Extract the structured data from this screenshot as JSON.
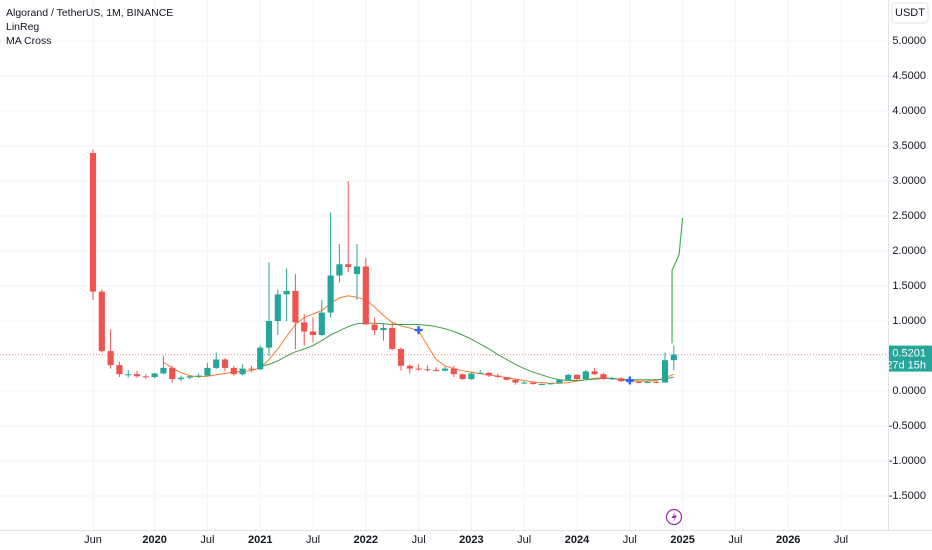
{
  "chart_data": {
    "type": "candlestick",
    "title": "Algorand / TetherUS, 1M, BINANCE",
    "indicators": [
      "LinReg",
      "MA Cross"
    ],
    "currency": "USDT",
    "x": [
      0,
      1,
      2,
      3,
      4,
      5,
      6,
      7,
      8,
      9,
      10,
      11,
      12,
      13,
      14,
      15,
      16,
      17,
      18,
      19,
      20,
      21,
      22,
      23,
      24,
      25,
      26,
      27,
      28,
      29,
      30,
      31,
      32,
      33,
      34,
      35,
      36,
      37,
      38,
      39,
      40,
      41,
      42,
      43,
      44,
      45,
      46,
      47,
      48,
      49,
      50,
      51,
      52,
      53,
      54,
      55,
      56,
      57,
      58,
      59,
      60,
      61,
      62,
      63,
      64,
      65,
      66
    ],
    "open": [
      3.4,
      1.42,
      0.57,
      0.37,
      0.24,
      0.24,
      0.21,
      0.2,
      0.25,
      0.33,
      0.17,
      0.19,
      0.21,
      0.22,
      0.33,
      0.45,
      0.33,
      0.24,
      0.32,
      0.31,
      0.62,
      1.0,
      1.38,
      1.43,
      0.98,
      0.85,
      0.8,
      1.12,
      1.65,
      1.81,
      1.67,
      1.78,
      0.95,
      0.87,
      0.9,
      0.6,
      0.36,
      0.32,
      0.31,
      0.3,
      0.29,
      0.32,
      0.24,
      0.17,
      0.25,
      0.26,
      0.22,
      0.2,
      0.16,
      0.12,
      0.12,
      0.1,
      0.1,
      0.11,
      0.16,
      0.23,
      0.17,
      0.28,
      0.24,
      0.17,
      0.18,
      0.14,
      0.13,
      0.12,
      0.13,
      0.12,
      0.44
    ],
    "high": [
      3.45,
      1.45,
      0.88,
      0.42,
      0.3,
      0.29,
      0.24,
      0.26,
      0.5,
      0.36,
      0.22,
      0.23,
      0.25,
      0.4,
      0.55,
      0.47,
      0.36,
      0.38,
      0.36,
      0.65,
      1.84,
      1.45,
      1.75,
      1.67,
      1.1,
      1.05,
      1.3,
      2.55,
      2.1,
      3.0,
      2.1,
      1.9,
      1.05,
      0.97,
      0.97,
      0.62,
      0.38,
      0.38,
      0.37,
      0.34,
      0.35,
      0.36,
      0.25,
      0.27,
      0.3,
      0.27,
      0.25,
      0.2,
      0.17,
      0.14,
      0.12,
      0.11,
      0.11,
      0.17,
      0.25,
      0.24,
      0.3,
      0.33,
      0.26,
      0.2,
      0.2,
      0.16,
      0.14,
      0.14,
      0.14,
      0.55,
      0.65
    ],
    "low": [
      1.3,
      0.55,
      0.32,
      0.2,
      0.19,
      0.19,
      0.17,
      0.18,
      0.24,
      0.12,
      0.14,
      0.17,
      0.19,
      0.21,
      0.31,
      0.28,
      0.22,
      0.22,
      0.27,
      0.3,
      0.5,
      0.8,
      1.0,
      0.6,
      0.65,
      0.7,
      0.78,
      1.05,
      1.55,
      1.7,
      1.3,
      0.95,
      0.8,
      0.72,
      0.58,
      0.29,
      0.25,
      0.29,
      0.28,
      0.28,
      0.28,
      0.2,
      0.16,
      0.16,
      0.24,
      0.2,
      0.19,
      0.15,
      0.09,
      0.1,
      0.09,
      0.09,
      0.09,
      0.11,
      0.15,
      0.16,
      0.16,
      0.23,
      0.16,
      0.16,
      0.13,
      0.12,
      0.11,
      0.11,
      0.11,
      0.12,
      0.3
    ],
    "close": [
      1.42,
      0.57,
      0.37,
      0.24,
      0.24,
      0.21,
      0.2,
      0.25,
      0.33,
      0.17,
      0.19,
      0.21,
      0.22,
      0.33,
      0.45,
      0.33,
      0.24,
      0.32,
      0.31,
      0.62,
      1.0,
      1.38,
      1.43,
      0.98,
      0.85,
      0.8,
      1.12,
      1.65,
      1.81,
      1.77,
      1.78,
      0.95,
      0.87,
      0.9,
      0.6,
      0.36,
      0.32,
      0.31,
      0.3,
      0.29,
      0.32,
      0.24,
      0.17,
      0.25,
      0.26,
      0.22,
      0.2,
      0.16,
      0.12,
      0.12,
      0.1,
      0.1,
      0.11,
      0.16,
      0.23,
      0.17,
      0.28,
      0.24,
      0.17,
      0.18,
      0.14,
      0.13,
      0.12,
      0.13,
      0.12,
      0.44,
      0.52
    ],
    "up_color": "#26a69a",
    "down_color": "#ef5350",
    "series": [
      {
        "color": "#f57c2c",
        "values": [
          null,
          null,
          null,
          null,
          null,
          null,
          null,
          null,
          0.41,
          0.33,
          0.26,
          0.22,
          0.2,
          0.21,
          0.23,
          0.25,
          0.27,
          0.28,
          0.29,
          0.33,
          0.45,
          0.6,
          0.78,
          0.95,
          1.05,
          1.1,
          1.15,
          1.25,
          1.33,
          1.36,
          1.34,
          1.3,
          1.2,
          1.08,
          0.98,
          0.93,
          0.9,
          0.86,
          0.65,
          0.45,
          0.36,
          0.32,
          0.29,
          0.27,
          0.25,
          0.23,
          0.21,
          0.19,
          0.17,
          0.15,
          0.13,
          0.12,
          0.11,
          0.11,
          0.12,
          0.14,
          0.16,
          0.18,
          0.19,
          0.18,
          0.16,
          0.15,
          0.14,
          0.14,
          0.15,
          0.19,
          0.24
        ]
      },
      {
        "color": "#43a047",
        "values": [
          null,
          null,
          null,
          null,
          null,
          null,
          null,
          null,
          null,
          null,
          null,
          null,
          null,
          null,
          null,
          null,
          null,
          null,
          null,
          0.35,
          0.38,
          0.43,
          0.5,
          0.56,
          0.6,
          0.65,
          0.72,
          0.8,
          0.86,
          0.92,
          0.96,
          0.97,
          0.97,
          0.96,
          0.95,
          0.95,
          0.95,
          0.95,
          0.94,
          0.92,
          0.89,
          0.85,
          0.8,
          0.74,
          0.67,
          0.6,
          0.52,
          0.45,
          0.38,
          0.32,
          0.27,
          0.23,
          0.19,
          0.16,
          0.15,
          0.15,
          0.16,
          0.17,
          0.18,
          0.18,
          0.17,
          0.16,
          0.16,
          0.16,
          0.16,
          0.17,
          0.2
        ]
      }
    ],
    "linreg": {
      "color": "#4caf50",
      "x": [
        65.8,
        65.8,
        66.6,
        67
      ],
      "values": [
        0.68,
        1.72,
        1.95,
        2.47
      ]
    },
    "crosses": {
      "color": "#2962ff",
      "x": [
        37,
        61
      ],
      "values": [
        0.87,
        0.15
      ]
    },
    "last_price": 0.5201,
    "countdown": "27d 15h",
    "xlim": [
      -10.57,
      90.34
    ],
    "ylim": [
      -1.986,
      5.586
    ],
    "xticks": [
      {
        "value": 0,
        "label": "Jun"
      },
      {
        "value": 7,
        "label": "2020"
      },
      {
        "value": 13,
        "label": "Jul"
      },
      {
        "value": 19,
        "label": "2021"
      },
      {
        "value": 25,
        "label": "Jul"
      },
      {
        "value": 31,
        "label": "2022"
      },
      {
        "value": 37,
        "label": "Jul"
      },
      {
        "value": 43,
        "label": "2023"
      },
      {
        "value": 49,
        "label": "Jul"
      },
      {
        "value": 55,
        "label": "2024"
      },
      {
        "value": 61,
        "label": "Jul"
      },
      {
        "value": 67,
        "label": "2025"
      },
      {
        "value": 73,
        "label": "Jul"
      },
      {
        "value": 79,
        "label": "2026"
      },
      {
        "value": 85,
        "label": "Jul"
      }
    ],
    "yticks": [
      {
        "value": 5,
        "label": "5.0000"
      },
      {
        "value": 4.5,
        "label": "4.5000"
      },
      {
        "value": 4,
        "label": "4.0000"
      },
      {
        "value": 3.5,
        "label": "3.5000"
      },
      {
        "value": 3,
        "label": "3.0000"
      },
      {
        "value": 2.5,
        "label": "2.5000"
      },
      {
        "value": 2,
        "label": "2.0000"
      },
      {
        "value": 1.5,
        "label": "1.5000"
      },
      {
        "value": 1,
        "label": "1.0000"
      },
      {
        "value": 0,
        "label": "0.0000"
      },
      {
        "value": -0.5,
        "label": "-0.5000"
      },
      {
        "value": -1,
        "label": "-1.0000"
      },
      {
        "value": -1.5,
        "label": "-1.5000"
      }
    ]
  }
}
